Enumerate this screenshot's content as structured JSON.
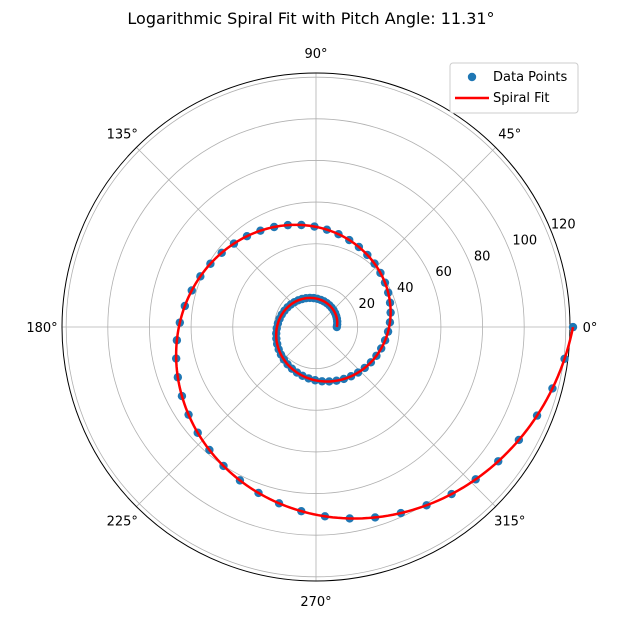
{
  "chart_data": {
    "type": "scatter",
    "projection": "polar",
    "title": "Logarithmic Spiral Fit with Pitch Angle: 11.31°",
    "angle_ticks": [
      "0°",
      "45°",
      "90°",
      "135°",
      "180°",
      "225°",
      "270°",
      "315°"
    ],
    "radial_ticks": [
      20,
      40,
      60,
      80,
      100,
      120
    ],
    "radial_tick_labels": [
      "20",
      "40",
      "60",
      "80",
      "100",
      "120"
    ],
    "rlim": [
      0,
      122
    ],
    "grid": true,
    "legend_position": "top-right",
    "series": [
      {
        "name": "Data Points",
        "kind": "points",
        "color": "#1f77b4",
        "model": {
          "a": 10,
          "b": 0.2,
          "theta_start_rad": 0,
          "theta_end_rad": 12.566,
          "count": 100
        },
        "note": "points sampled as r = a·e^(b·θ)"
      },
      {
        "name": "Spiral Fit",
        "kind": "line",
        "color": "#ff0000",
        "model": {
          "a": 10,
          "b": 0.2,
          "theta_start_rad": 0,
          "theta_end_rad": 12.566
        }
      }
    ]
  }
}
